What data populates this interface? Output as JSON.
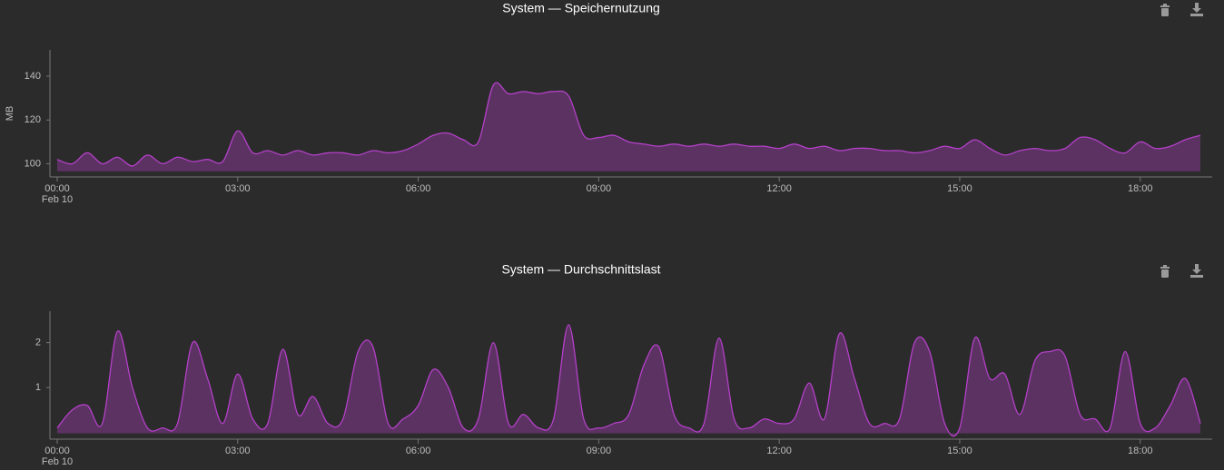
{
  "chart_data": [
    {
      "type": "area",
      "title": "System — Speichernutzung",
      "ylabel": "MB",
      "x_date_label": "Feb 10",
      "color": "#b540c9",
      "x": [
        0,
        0.25,
        0.5,
        0.75,
        1,
        1.25,
        1.5,
        1.75,
        2,
        2.25,
        2.5,
        2.75,
        3,
        3.25,
        3.5,
        3.75,
        4,
        4.25,
        4.5,
        4.75,
        5,
        5.25,
        5.5,
        5.75,
        6,
        6.25,
        6.5,
        6.75,
        7,
        7.25,
        7.5,
        7.75,
        8,
        8.25,
        8.5,
        8.75,
        9,
        9.25,
        9.5,
        9.75,
        10,
        10.25,
        10.5,
        10.75,
        11,
        11.25,
        11.5,
        11.75,
        12,
        12.25,
        12.5,
        12.75,
        13,
        13.25,
        13.5,
        13.75,
        14,
        14.25,
        14.5,
        14.75,
        15,
        15.25,
        15.5,
        15.75,
        16,
        16.25,
        16.5,
        16.75,
        17,
        17.25,
        17.5,
        17.75,
        18,
        18.25,
        18.5,
        18.75,
        19
      ],
      "values": [
        102,
        100,
        105,
        100,
        103,
        99,
        104,
        100,
        103,
        101,
        102,
        101,
        115,
        105,
        106,
        104,
        106,
        104,
        105,
        105,
        104,
        106,
        105,
        106,
        109,
        113,
        114,
        111,
        110,
        136,
        132,
        133,
        132,
        133,
        131,
        113,
        112,
        113,
        110,
        109,
        108,
        109,
        108,
        109,
        108,
        109,
        108,
        108,
        107,
        109,
        107,
        108,
        106,
        107,
        107,
        106,
        106,
        105,
        106,
        108,
        107,
        111,
        107,
        104,
        106,
        107,
        106,
        107,
        112,
        111,
        107,
        105,
        110,
        107,
        108,
        111,
        113
      ],
      "xlim": [
        0,
        19
      ],
      "xticks": [
        {
          "value": 0,
          "label": "00:00"
        },
        {
          "value": 3,
          "label": "03:00"
        },
        {
          "value": 6,
          "label": "06:00"
        },
        {
          "value": 9,
          "label": "09:00"
        },
        {
          "value": 12,
          "label": "12:00"
        },
        {
          "value": 15,
          "label": "15:00"
        },
        {
          "value": 18,
          "label": "18:00"
        }
      ],
      "ylim": [
        94,
        152
      ],
      "yticks": [
        100,
        120,
        140
      ]
    },
    {
      "type": "area",
      "title": "System — Durchschnittslast",
      "x_date_label": "Feb 10",
      "color": "#b540c9",
      "x": [
        0,
        0.25,
        0.5,
        0.75,
        1,
        1.25,
        1.5,
        1.75,
        2,
        2.25,
        2.5,
        2.75,
        3,
        3.25,
        3.5,
        3.75,
        4,
        4.25,
        4.5,
        4.75,
        5,
        5.25,
        5.5,
        5.75,
        6,
        6.25,
        6.5,
        6.75,
        7,
        7.25,
        7.5,
        7.75,
        8,
        8.25,
        8.5,
        8.75,
        9,
        9.25,
        9.5,
        9.75,
        10,
        10.25,
        10.5,
        10.75,
        11,
        11.25,
        11.5,
        11.75,
        12,
        12.25,
        12.5,
        12.75,
        13,
        13.25,
        13.5,
        13.75,
        14,
        14.25,
        14.5,
        14.75,
        15,
        15.25,
        15.5,
        15.75,
        16,
        16.25,
        16.5,
        16.75,
        17,
        17.25,
        17.5,
        17.75,
        18,
        18.25,
        18.5,
        18.75,
        19
      ],
      "values": [
        0.1,
        0.5,
        0.6,
        0.2,
        2.25,
        1.0,
        0.1,
        0.1,
        0.2,
        2.0,
        1.2,
        0.2,
        1.3,
        0.3,
        0.2,
        1.85,
        0.4,
        0.8,
        0.2,
        0.3,
        1.8,
        1.9,
        0.2,
        0.3,
        0.6,
        1.4,
        1.0,
        0.1,
        0.3,
        2.0,
        0.2,
        0.4,
        0.1,
        0.3,
        2.4,
        0.3,
        0.1,
        0.2,
        0.4,
        1.5,
        1.9,
        0.4,
        0.1,
        0.2,
        2.1,
        0.3,
        0.1,
        0.3,
        0.2,
        0.3,
        1.1,
        0.3,
        2.2,
        1.2,
        0.2,
        0.2,
        0.3,
        2.0,
        1.8,
        0.2,
        0.1,
        2.1,
        1.2,
        1.3,
        0.4,
        1.6,
        1.8,
        1.7,
        0.4,
        0.3,
        0.1,
        1.8,
        0.2,
        0.1,
        0.6,
        1.2,
        0.2
      ],
      "xlim": [
        0,
        19
      ],
      "xticks": [
        {
          "value": 0,
          "label": "00:00"
        },
        {
          "value": 3,
          "label": "03:00"
        },
        {
          "value": 6,
          "label": "06:00"
        },
        {
          "value": 9,
          "label": "09:00"
        },
        {
          "value": 12,
          "label": "12:00"
        },
        {
          "value": 15,
          "label": "15:00"
        },
        {
          "value": 18,
          "label": "18:00"
        }
      ],
      "ylim": [
        -0.15,
        2.7
      ],
      "yticks": [
        1,
        2
      ]
    }
  ]
}
